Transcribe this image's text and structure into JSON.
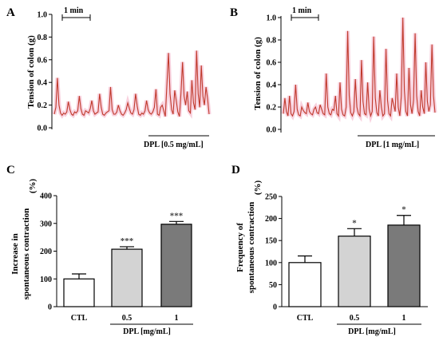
{
  "panels": {
    "a": {
      "letter": "A",
      "ylabel": "Tension of colon (g)",
      "yticks": [
        "0.0",
        "0.2",
        "0.4",
        "0.6",
        "0.8",
        "1.0"
      ],
      "scalebar_label": "1 min",
      "treatment_label": "DPL [0.5 mg/mL]"
    },
    "b": {
      "letter": "B",
      "ylabel": "Tension of colon (g)",
      "yticks": [
        "0.0",
        "0.2",
        "0.4",
        "0.6",
        "0.8",
        "1.0"
      ],
      "scalebar_label": "1 min",
      "treatment_label": "DPL [1 mg/mL]"
    },
    "c": {
      "letter": "C",
      "ylabel_line1": "Increase in",
      "ylabel_line2": "spontaneous contraction",
      "ylabel_unit": "(%)",
      "xlabel": "DPL [mg/mL]",
      "yticks": [
        "0",
        "100",
        "200",
        "300",
        "400"
      ]
    },
    "d": {
      "letter": "D",
      "ylabel_line1": "Frequency of",
      "ylabel_line2": "spontaneous contraction",
      "ylabel_unit": "(%)",
      "xlabel": "DPL [mg/mL]",
      "yticks": [
        "0",
        "50",
        "100",
        "150",
        "200",
        "250"
      ]
    }
  },
  "colors": {
    "trace": "#c0392b",
    "trace_glow": "#f6c6d6",
    "bar_ctl": "#ffffff",
    "bar_low": "#d3d3d3",
    "bar_high": "#7a7a7a"
  },
  "chart_data": [
    {
      "type": "line",
      "panel": "A",
      "ylabel": "Tension of colon (g)",
      "ylim": [
        0,
        1.0
      ],
      "x": [
        0,
        1,
        2,
        3,
        4,
        5,
        6,
        7,
        8,
        9,
        10,
        11,
        12,
        13,
        14,
        15,
        16,
        17,
        18,
        19,
        20,
        21,
        22,
        23,
        24,
        25,
        26,
        27,
        28,
        29,
        30,
        31,
        32,
        33,
        34,
        35,
        36,
        37,
        38,
        39,
        40,
        41,
        42,
        43,
        44,
        45,
        46,
        47,
        48,
        49,
        50,
        51,
        52,
        53,
        54,
        55,
        56,
        57,
        58,
        59,
        60,
        61,
        62,
        63,
        64,
        65,
        66,
        67,
        68,
        69,
        70,
        71,
        72,
        73,
        74,
        75,
        76,
        77,
        78,
        79,
        80,
        81,
        82,
        83,
        84,
        85,
        86,
        87,
        88,
        89,
        90,
        91,
        92,
        93,
        94,
        95,
        96,
        97,
        98,
        99
      ],
      "values": [
        0.12,
        0.18,
        0.44,
        0.2,
        0.13,
        0.11,
        0.13,
        0.12,
        0.14,
        0.23,
        0.16,
        0.12,
        0.11,
        0.14,
        0.13,
        0.15,
        0.28,
        0.17,
        0.12,
        0.11,
        0.15,
        0.14,
        0.13,
        0.17,
        0.24,
        0.15,
        0.12,
        0.13,
        0.14,
        0.3,
        0.18,
        0.12,
        0.11,
        0.13,
        0.14,
        0.15,
        0.36,
        0.16,
        0.12,
        0.12,
        0.14,
        0.2,
        0.15,
        0.12,
        0.11,
        0.13,
        0.16,
        0.22,
        0.17,
        0.13,
        0.12,
        0.16,
        0.3,
        0.19,
        0.12,
        0.11,
        0.13,
        0.12,
        0.15,
        0.24,
        0.16,
        0.13,
        0.12,
        0.14,
        0.18,
        0.34,
        0.12,
        0.11,
        0.18,
        0.2,
        0.15,
        0.1,
        0.38,
        0.66,
        0.3,
        0.16,
        0.12,
        0.33,
        0.24,
        0.14,
        0.1,
        0.3,
        0.58,
        0.28,
        0.2,
        0.32,
        0.15,
        0.13,
        0.42,
        0.22,
        0.16,
        0.68,
        0.3,
        0.18,
        0.55,
        0.28,
        0.2,
        0.36,
        0.26,
        0.12
      ]
    },
    {
      "type": "line",
      "panel": "B",
      "ylabel": "Tension of colon (g)",
      "ylim": [
        0,
        1.0
      ],
      "x": [
        0,
        1,
        2,
        3,
        4,
        5,
        6,
        7,
        8,
        9,
        10,
        11,
        12,
        13,
        14,
        15,
        16,
        17,
        18,
        19,
        20,
        21,
        22,
        23,
        24,
        25,
        26,
        27,
        28,
        29,
        30,
        31,
        32,
        33,
        34,
        35,
        36,
        37,
        38,
        39,
        40,
        41,
        42,
        43,
        44,
        45,
        46,
        47,
        48,
        49,
        50,
        51,
        52,
        53,
        54,
        55,
        56,
        57,
        58,
        59,
        60,
        61,
        62,
        63,
        64,
        65,
        66,
        67,
        68,
        69,
        70,
        71,
        72,
        73,
        74,
        75,
        76,
        77,
        78,
        79,
        80,
        81,
        82,
        83,
        84,
        85,
        86,
        87,
        88,
        89,
        90,
        91,
        92,
        93,
        94,
        95,
        96,
        97,
        98,
        99
      ],
      "values": [
        0.14,
        0.28,
        0.16,
        0.12,
        0.3,
        0.14,
        0.12,
        0.16,
        0.4,
        0.18,
        0.13,
        0.12,
        0.2,
        0.17,
        0.15,
        0.14,
        0.24,
        0.16,
        0.14,
        0.13,
        0.18,
        0.2,
        0.15,
        0.14,
        0.22,
        0.18,
        0.14,
        0.13,
        0.5,
        0.2,
        0.14,
        0.13,
        0.18,
        0.17,
        0.3,
        0.14,
        0.12,
        0.42,
        0.18,
        0.13,
        0.12,
        0.2,
        0.88,
        0.3,
        0.15,
        0.12,
        0.16,
        0.45,
        0.2,
        0.14,
        0.12,
        0.62,
        0.25,
        0.14,
        0.13,
        0.42,
        0.18,
        0.12,
        0.16,
        0.83,
        0.28,
        0.15,
        0.12,
        0.35,
        0.2,
        0.12,
        0.14,
        0.72,
        0.26,
        0.14,
        0.12,
        0.28,
        0.22,
        0.16,
        0.5,
        0.2,
        0.12,
        0.3,
        1.0,
        0.35,
        0.16,
        0.12,
        0.55,
        0.22,
        0.14,
        0.26,
        0.86,
        0.3,
        0.16,
        0.12,
        0.35,
        0.2,
        0.14,
        0.6,
        0.25,
        0.16,
        0.22,
        0.76,
        0.3,
        0.15
      ]
    },
    {
      "type": "bar",
      "panel": "C",
      "categories": [
        "CTL",
        "0.5",
        "1"
      ],
      "values": [
        100,
        207,
        297
      ],
      "errors": [
        18,
        9,
        10
      ],
      "annotations": [
        "",
        "***",
        "***"
      ],
      "ylabel": "Increase in spontaneous contraction (%)",
      "xlabel": "DPL [mg/mL]",
      "ylim": [
        0,
        400
      ]
    },
    {
      "type": "bar",
      "panel": "D",
      "categories": [
        "CTL",
        "0.5",
        "1"
      ],
      "values": [
        100,
        160,
        185
      ],
      "errors": [
        15,
        17,
        22
      ],
      "annotations": [
        "",
        "*",
        "*"
      ],
      "ylabel": "Frequency of spontaneous contraction (%)",
      "xlabel": "DPL [mg/mL]",
      "ylim": [
        0,
        250
      ]
    }
  ]
}
